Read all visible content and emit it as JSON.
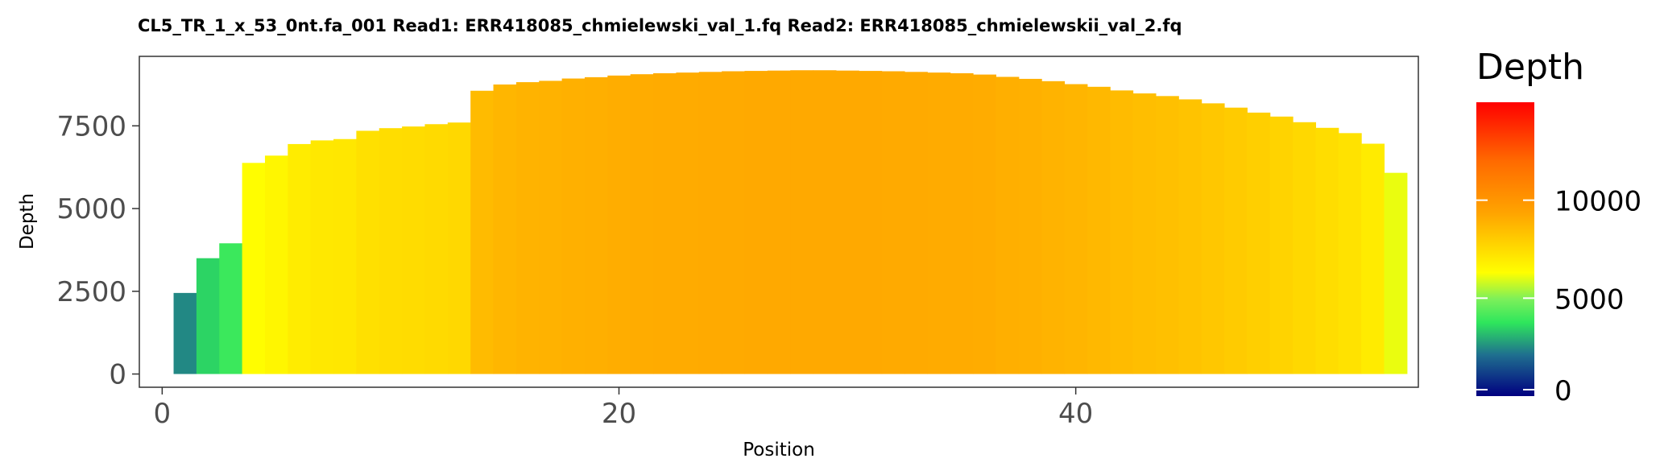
{
  "chart_data": {
    "type": "bar",
    "title": "CL5_TR_1_x_53_0nt.fa_001   Read1: ERR418085_chmielewski_val_1.fq   Read2: ERR418085_chmielewskii_val_2.fq",
    "xlabel": "Position",
    "ylabel": "Depth",
    "xlim": [
      -1,
      55
    ],
    "ylim": [
      -400,
      9600
    ],
    "x_ticks": [
      0,
      20,
      40
    ],
    "y_ticks": [
      0,
      2500,
      5000,
      7500
    ],
    "grid": false,
    "legend": {
      "title": "Depth",
      "position": "right",
      "type": "colorbar",
      "min": 0,
      "max": 15000,
      "ticks": [
        0,
        5000,
        10000
      ],
      "tick_labels": [
        "0",
        "5000",
        "10000"
      ],
      "colors": [
        "#000080",
        "#1f6f8f",
        "#2ee65c",
        "#7cf05a",
        "#ffff00",
        "#ffa500",
        "#ff6a00",
        "#ff0000"
      ],
      "stops": [
        0,
        0.14,
        0.25,
        0.33,
        0.42,
        0.62,
        0.8,
        1
      ]
    },
    "x": [
      1,
      2,
      3,
      4,
      5,
      6,
      7,
      8,
      9,
      10,
      11,
      12,
      13,
      14,
      15,
      16,
      17,
      18,
      19,
      20,
      21,
      22,
      23,
      24,
      25,
      26,
      27,
      28,
      29,
      30,
      31,
      32,
      33,
      34,
      35,
      36,
      37,
      38,
      39,
      40,
      41,
      42,
      43,
      44,
      45,
      46,
      47,
      48,
      49,
      50,
      51,
      52,
      53,
      54
    ],
    "values": [
      2450,
      3500,
      3950,
      6380,
      6600,
      6950,
      7060,
      7100,
      7350,
      7430,
      7480,
      7550,
      7600,
      8560,
      8750,
      8820,
      8860,
      8930,
      8970,
      9020,
      9060,
      9090,
      9110,
      9130,
      9150,
      9160,
      9170,
      9180,
      9180,
      9170,
      9160,
      9150,
      9130,
      9110,
      9090,
      9050,
      8980,
      8920,
      8850,
      8760,
      8680,
      8570,
      8480,
      8400,
      8300,
      8180,
      8050,
      7900,
      7780,
      7610,
      7440,
      7280,
      6960,
      6080
    ]
  }
}
